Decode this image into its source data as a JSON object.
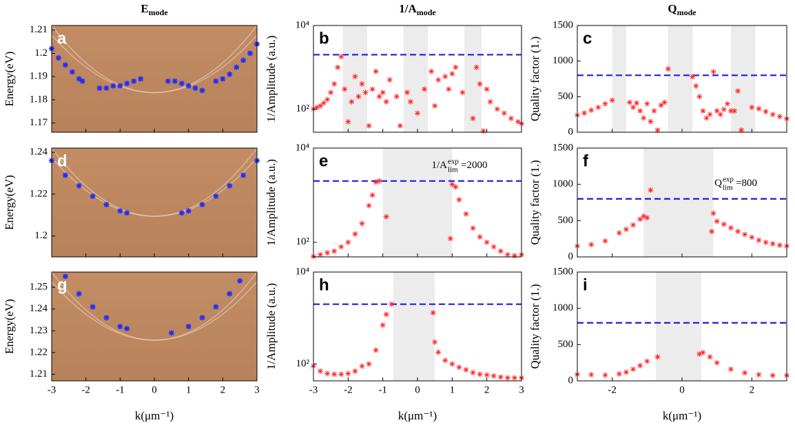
{
  "chart_data": [
    {
      "type": "scatter",
      "panel_label": "a",
      "title": "E",
      "title_sub": "mode",
      "ylabel": "Energy(eV)",
      "background": "#bf8a62",
      "color": "#1f2bff",
      "xlim": [
        -3,
        3
      ],
      "ylim": [
        1.166,
        1.212
      ],
      "xticks": [
        -3,
        -2,
        -1,
        0,
        1,
        2,
        3
      ],
      "yticks": [
        1.17,
        1.18,
        1.19,
        1.2,
        1.21
      ],
      "x": [
        -3,
        -2.8,
        -2.6,
        -2.4,
        -2.2,
        -2.1,
        -1.6,
        -1.4,
        -1.2,
        -1.0,
        -0.8,
        -0.6,
        -0.4,
        0.4,
        0.6,
        0.8,
        1.0,
        1.2,
        1.4,
        1.8,
        2.0,
        2.2,
        2.4,
        2.6,
        2.8,
        3.0
      ],
      "y": [
        1.202,
        1.198,
        1.195,
        1.192,
        1.189,
        1.188,
        1.185,
        1.185,
        1.186,
        1.186,
        1.187,
        1.188,
        1.189,
        1.188,
        1.188,
        1.187,
        1.186,
        1.185,
        1.184,
        1.188,
        1.189,
        1.191,
        1.194,
        1.197,
        1.2,
        1.204
      ]
    },
    {
      "type": "scatter",
      "panel_label": "b",
      "title": "1/A",
      "title_sub": "mode",
      "ylabel": "1/Amplitude (a.u.)",
      "color": "#ff2020",
      "log_y": true,
      "xlim": [
        -3,
        3
      ],
      "ylim": [
        28,
        10000
      ],
      "xticks": [
        -3,
        -2,
        -1,
        0,
        1,
        2,
        3
      ],
      "yticks": [
        {
          "value": 100,
          "label": "10²"
        },
        {
          "value": 10000,
          "label": "10⁴"
        }
      ],
      "shaded": [
        [
          -2.15,
          -1.45
        ],
        [
          -0.4,
          0.3
        ],
        [
          1.35,
          1.85
        ]
      ],
      "shade_color": "#ececec",
      "threshold": 2000,
      "threshold_color": "#1a1ae6",
      "x": [
        -3,
        -2.9,
        -2.8,
        -2.7,
        -2.6,
        -2.5,
        -2.4,
        -2.3,
        -2.2,
        -2.1,
        -2.0,
        -1.9,
        -1.8,
        -1.7,
        -1.6,
        -1.5,
        -1.4,
        -1.3,
        -1.2,
        -1.1,
        -1.0,
        -0.9,
        -0.8,
        -0.6,
        -0.5,
        -0.3,
        -0.2,
        0,
        0.2,
        0.4,
        0.5,
        0.6,
        0.8,
        0.9,
        1.0,
        1.1,
        1.3,
        1.6,
        1.7,
        1.8,
        1.9,
        2.0,
        2.1,
        2.3,
        2.5,
        2.7,
        2.9,
        3.0
      ],
      "y": [
        100,
        110,
        120,
        140,
        170,
        250,
        400,
        1000,
        1800,
        300,
        50,
        150,
        600,
        200,
        400,
        250,
        40,
        300,
        800,
        200,
        250,
        150,
        500,
        200,
        40,
        250,
        150,
        80,
        300,
        800,
        120,
        500,
        600,
        300,
        700,
        1000,
        250,
        60,
        1000,
        400,
        30,
        300,
        150,
        100,
        80,
        60,
        50,
        45
      ]
    },
    {
      "type": "scatter",
      "panel_label": "c",
      "title": "Q",
      "title_sub": "mode",
      "ylabel": "Quality factor (1.)",
      "color": "#ff2020",
      "xlim": [
        -3,
        3
      ],
      "ylim": [
        0,
        1500
      ],
      "xticks": [
        -2,
        0,
        2
      ],
      "yticks": [
        0,
        500,
        1000,
        1500
      ],
      "shaded": [
        [
          -2.0,
          -1.6
        ],
        [
          -0.4,
          0.3
        ],
        [
          1.4,
          2.1
        ]
      ],
      "shade_color": "#ececec",
      "threshold": 800,
      "threshold_color": "#1a1ae6",
      "x": [
        -3,
        -2.8,
        -2.6,
        -2.4,
        -2.2,
        -2.0,
        -1.5,
        -1.4,
        -1.3,
        -1.2,
        -1.1,
        -1.0,
        -0.9,
        -0.8,
        -0.7,
        -0.6,
        -0.5,
        -0.4,
        0.3,
        0.4,
        0.5,
        0.6,
        0.7,
        0.8,
        0.9,
        1.0,
        1.1,
        1.2,
        1.3,
        1.4,
        1.5,
        1.6,
        1.7,
        2.0,
        2.2,
        2.4,
        2.6,
        2.8,
        3.0
      ],
      "y": [
        240,
        270,
        310,
        350,
        400,
        450,
        420,
        350,
        410,
        300,
        200,
        400,
        150,
        300,
        30,
        380,
        420,
        890,
        780,
        650,
        500,
        300,
        200,
        250,
        850,
        300,
        250,
        320,
        400,
        300,
        300,
        580,
        30,
        350,
        330,
        290,
        250,
        220,
        190
      ]
    },
    {
      "type": "scatter",
      "panel_label": "d",
      "ylabel": "Energy(eV)",
      "background": "#bf8a62",
      "color": "#1f2bff",
      "xlim": [
        -3,
        3
      ],
      "ylim": [
        1.19,
        1.242
      ],
      "xticks": [
        -3,
        -2,
        -1,
        0,
        1,
        2,
        3
      ],
      "yticks": [
        1.2,
        1.22,
        1.24
      ],
      "x": [
        -3,
        -2.6,
        -2.2,
        -1.8,
        -1.4,
        -1.0,
        -0.8,
        0.8,
        1.0,
        1.4,
        1.8,
        2.2,
        2.6,
        3.0
      ],
      "y": [
        1.236,
        1.229,
        1.224,
        1.219,
        1.215,
        1.212,
        1.211,
        1.211,
        1.212,
        1.215,
        1.219,
        1.224,
        1.229,
        1.236
      ]
    },
    {
      "type": "scatter",
      "panel_label": "e",
      "ylabel": "1/Amplitude (a.u.)",
      "color": "#ff2020",
      "log_y": true,
      "xlim": [
        -3,
        3
      ],
      "ylim": [
        49,
        10000
      ],
      "xticks": [
        -3,
        -2,
        -1,
        0,
        1,
        2,
        3
      ],
      "yticks": [
        {
          "value": 100,
          "label": "10²"
        },
        {
          "value": 10000,
          "label": "10⁴"
        }
      ],
      "shaded": [
        [
          -1.0,
          1.0
        ]
      ],
      "shade_color": "#ececec",
      "threshold": 2000,
      "threshold_color": "#1a1ae6",
      "annotation": {
        "text": "1/A",
        "sub": "lim",
        "sup": "exp",
        "suffix": "=2000"
      },
      "x": [
        -3,
        -2.8,
        -2.6,
        -2.4,
        -2.2,
        -2.0,
        -1.8,
        -1.6,
        -1.4,
        -1.3,
        -1.2,
        -1.1,
        -0.9,
        0.95,
        1.0,
        1.1,
        1.2,
        1.4,
        1.6,
        1.8,
        2.0,
        2.2,
        2.4,
        2.6,
        2.8,
        3.0
      ],
      "y": [
        50,
        55,
        60,
        65,
        80,
        100,
        150,
        250,
        600,
        1000,
        1900,
        2000,
        350,
        120,
        1700,
        1500,
        800,
        400,
        200,
        130,
        100,
        80,
        65,
        55,
        52,
        55
      ]
    },
    {
      "type": "scatter",
      "panel_label": "f",
      "ylabel": "Quality factor (1.)",
      "color": "#ff2020",
      "xlim": [
        -3,
        3
      ],
      "ylim": [
        0,
        1500
      ],
      "xticks": [
        -2,
        0,
        2
      ],
      "yticks": [
        0,
        500,
        1000,
        1500
      ],
      "shaded": [
        [
          -1.1,
          0.9
        ]
      ],
      "shade_color": "#ececec",
      "threshold": 800,
      "threshold_color": "#1a1ae6",
      "annotation": {
        "text": "Q",
        "sub": "lim",
        "sup": "exp",
        "suffix": "=800"
      },
      "x": [
        -3,
        -2.6,
        -2.2,
        -1.8,
        -1.6,
        -1.4,
        -1.2,
        -1.1,
        -1.0,
        -0.9,
        0.85,
        0.9,
        1.0,
        1.2,
        1.4,
        1.6,
        1.8,
        2.0,
        2.2,
        2.4,
        2.6,
        2.8,
        3.0
      ],
      "y": [
        150,
        170,
        220,
        330,
        380,
        440,
        520,
        560,
        540,
        920,
        350,
        600,
        490,
        450,
        400,
        350,
        310,
        270,
        230,
        200,
        180,
        160,
        150
      ]
    },
    {
      "type": "scatter",
      "panel_label": "g",
      "ylabel": "Energy(eV)",
      "xlabel": "k(μm⁻¹)",
      "background": "#bf8a62",
      "color": "#1f2bff",
      "xlim": [
        -3,
        3
      ],
      "ylim": [
        1.207,
        1.257
      ],
      "xticks": [
        -3,
        -2,
        -1,
        0,
        1,
        2,
        3
      ],
      "yticks": [
        1.21,
        1.22,
        1.23,
        1.24,
        1.25
      ],
      "x": [
        -2.6,
        -2.2,
        -1.8,
        -1.4,
        -1.0,
        -0.8,
        0.5,
        1.0,
        1.4,
        1.8,
        2.2,
        2.5
      ],
      "y": [
        1.255,
        1.247,
        1.241,
        1.236,
        1.232,
        1.231,
        1.229,
        1.232,
        1.236,
        1.241,
        1.247,
        1.253
      ]
    },
    {
      "type": "scatter",
      "panel_label": "h",
      "ylabel": "1/Amplitude (a.u.)",
      "xlabel": "k(μm⁻¹)",
      "color": "#ff2020",
      "log_y": true,
      "xlim": [
        -3,
        3
      ],
      "ylim": [
        43,
        10000
      ],
      "xticks": [
        -3,
        -2,
        -1,
        0,
        1,
        2,
        3
      ],
      "yticks": [
        {
          "value": 100,
          "label": "10²"
        },
        {
          "value": 10000,
          "label": "10⁴"
        }
      ],
      "shaded": [
        [
          -0.7,
          0.5
        ]
      ],
      "shade_color": "#ececec",
      "threshold": 2000,
      "threshold_color": "#1a1ae6",
      "x": [
        -3,
        -2.8,
        -2.6,
        -2.4,
        -2.2,
        -2.0,
        -1.8,
        -1.6,
        -1.4,
        -1.2,
        -1.0,
        -0.9,
        -0.75,
        0.45,
        0.5,
        0.6,
        0.8,
        1.0,
        1.2,
        1.4,
        1.6,
        1.8,
        2.0,
        2.2,
        2.4,
        2.6,
        2.8,
        3.0
      ],
      "y": [
        90,
        70,
        62,
        60,
        60,
        62,
        70,
        90,
        100,
        200,
        700,
        1200,
        2000,
        1300,
        300,
        180,
        120,
        100,
        85,
        75,
        65,
        60,
        58,
        55,
        52,
        50,
        50,
        50
      ]
    },
    {
      "type": "scatter",
      "panel_label": "i",
      "ylabel": "Quality factor (1.)",
      "xlabel": "k(μm⁻¹)",
      "color": "#ff2020",
      "xlim": [
        -3,
        3
      ],
      "ylim": [
        0,
        1500
      ],
      "xticks": [
        -2,
        0,
        2
      ],
      "yticks": [
        0,
        500,
        1000,
        1500
      ],
      "shaded": [
        [
          -0.75,
          0.55
        ]
      ],
      "shade_color": "#ececec",
      "threshold": 800,
      "threshold_color": "#1a1ae6",
      "x": [
        -3,
        -2.6,
        -2.2,
        -1.8,
        -1.6,
        -1.4,
        -1.2,
        -1.0,
        -0.7,
        0.5,
        0.6,
        0.8,
        1.0,
        1.4,
        1.8,
        2.2,
        2.6,
        3.0
      ],
      "y": [
        90,
        85,
        80,
        95,
        120,
        160,
        210,
        270,
        330,
        370,
        390,
        330,
        250,
        160,
        110,
        85,
        75,
        75
      ]
    }
  ]
}
